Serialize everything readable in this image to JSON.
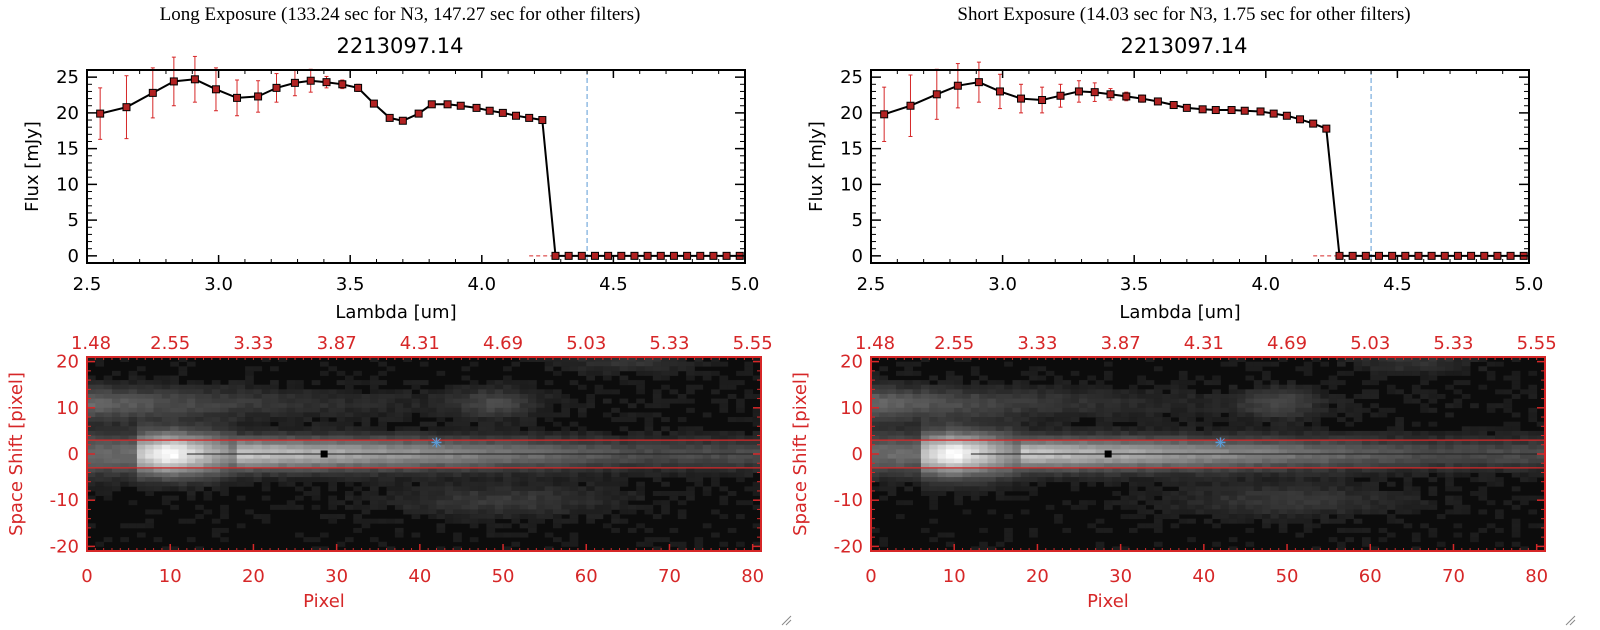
{
  "colors": {
    "red": "#d62728",
    "blue": "#5b9bd5",
    "black": "#000000",
    "marker": "#b22222"
  },
  "chart_data": [
    {
      "type": "line",
      "panel_title": "Long Exposure (133.24 sec for N3, 147.27 sec for other filters)",
      "title": "2213097.14",
      "xlabel": "Lambda [um]",
      "ylabel": "Flux [mJy]",
      "xlim": [
        2.5,
        5.0
      ],
      "ylim": [
        -1,
        26
      ],
      "xticks": [
        "2.5",
        "3.0",
        "3.5",
        "4.0",
        "4.5",
        "5.0"
      ],
      "yticks": [
        "0",
        "5",
        "10",
        "15",
        "20",
        "25"
      ],
      "vline_x": 4.4,
      "x": [
        2.55,
        2.65,
        2.75,
        2.83,
        2.91,
        2.99,
        3.07,
        3.15,
        3.22,
        3.29,
        3.35,
        3.41,
        3.47,
        3.53,
        3.59,
        3.65,
        3.7,
        3.76,
        3.81,
        3.87,
        3.92,
        3.98,
        4.03,
        4.08,
        4.13,
        4.18,
        4.23,
        4.28,
        4.33,
        4.38,
        4.43,
        4.48,
        4.53,
        4.58,
        4.63,
        4.68,
        4.73,
        4.78,
        4.83,
        4.88,
        4.93,
        4.98
      ],
      "y": [
        19.9,
        20.8,
        22.8,
        24.4,
        24.7,
        23.3,
        22.1,
        22.3,
        23.5,
        24.2,
        24.5,
        24.3,
        24.0,
        23.5,
        21.3,
        19.3,
        18.9,
        19.9,
        21.2,
        21.2,
        21.0,
        20.7,
        20.3,
        20.0,
        19.6,
        19.3,
        19.0,
        0,
        0,
        0,
        0,
        0,
        0,
        0,
        0,
        0,
        0,
        0,
        0,
        0,
        0,
        0
      ],
      "yerr": [
        3.6,
        4.4,
        3.5,
        3.4,
        3.2,
        3.0,
        2.5,
        2.2,
        2.0,
        1.8,
        1.6,
        0.8,
        0.6,
        0.5,
        0.4,
        0.3,
        0.3,
        0.3,
        0.3,
        0.2,
        0.2,
        0.2,
        0.2,
        0.2,
        0.2,
        0.2,
        0.2,
        0,
        0,
        0,
        0,
        0,
        0,
        0,
        0,
        0,
        0,
        0,
        0,
        0,
        0,
        0
      ],
      "image": {
        "xlabel": "Pixel",
        "ylabel": "Space Shift [pixel]",
        "xlim": [
          0,
          81
        ],
        "ylim": [
          -21,
          21
        ],
        "xticks": [
          "0",
          "10",
          "20",
          "30",
          "40",
          "50",
          "60",
          "70",
          "80"
        ],
        "yticks": [
          "-20",
          "-10",
          "0",
          "10",
          "20"
        ],
        "top_ticks": [
          "1.48",
          "2.55",
          "3.33",
          "3.87",
          "4.31",
          "4.69",
          "5.03",
          "5.33",
          "5.55"
        ],
        "aperture": [
          -3,
          3
        ],
        "source_pixel": [
          28.5,
          0
        ],
        "blue_marker": [
          42,
          2.5
        ]
      }
    },
    {
      "type": "line",
      "panel_title": "Short Exposure (14.03 sec for N3, 1.75 sec for other filters)",
      "title": "2213097.14",
      "xlabel": "Lambda [um]",
      "ylabel": "Flux [mJy]",
      "xlim": [
        2.5,
        5.0
      ],
      "ylim": [
        -1,
        26
      ],
      "xticks": [
        "2.5",
        "3.0",
        "3.5",
        "4.0",
        "4.5",
        "5.0"
      ],
      "yticks": [
        "0",
        "5",
        "10",
        "15",
        "20",
        "25"
      ],
      "vline_x": 4.4,
      "x": [
        2.55,
        2.65,
        2.75,
        2.83,
        2.91,
        2.99,
        3.07,
        3.15,
        3.22,
        3.29,
        3.35,
        3.41,
        3.47,
        3.53,
        3.59,
        3.65,
        3.7,
        3.76,
        3.81,
        3.87,
        3.92,
        3.98,
        4.03,
        4.08,
        4.13,
        4.18,
        4.23,
        4.28,
        4.33,
        4.38,
        4.43,
        4.48,
        4.53,
        4.58,
        4.63,
        4.68,
        4.73,
        4.78,
        4.83,
        4.88,
        4.93,
        4.98
      ],
      "y": [
        19.8,
        21.0,
        22.6,
        23.8,
        24.3,
        23.0,
        22.0,
        21.8,
        22.4,
        23.0,
        22.9,
        22.6,
        22.3,
        22.0,
        21.6,
        21.1,
        20.7,
        20.5,
        20.4,
        20.4,
        20.3,
        20.2,
        19.9,
        19.6,
        19.1,
        18.5,
        17.8,
        0,
        0,
        0,
        0,
        0,
        0,
        0,
        0,
        0,
        0,
        0,
        0,
        0,
        0,
        0
      ],
      "yerr": [
        3.8,
        4.3,
        3.5,
        3.1,
        2.8,
        2.4,
        2.0,
        1.8,
        1.6,
        1.5,
        1.3,
        0.8,
        0.6,
        0.5,
        0.4,
        0.3,
        0.3,
        0.3,
        0.3,
        0.2,
        0.2,
        0.2,
        0.2,
        0.2,
        0.2,
        0.2,
        0.2,
        0,
        0,
        0,
        0,
        0,
        0,
        0,
        0,
        0,
        0,
        0,
        0,
        0,
        0,
        0
      ],
      "image": {
        "xlabel": "Pixel",
        "ylabel": "Space Shift [pixel]",
        "xlim": [
          0,
          81
        ],
        "ylim": [
          -21,
          21
        ],
        "xticks": [
          "0",
          "10",
          "20",
          "30",
          "40",
          "50",
          "60",
          "70",
          "80"
        ],
        "yticks": [
          "-20",
          "-10",
          "0",
          "10",
          "20"
        ],
        "top_ticks": [
          "1.48",
          "2.55",
          "3.33",
          "3.87",
          "4.31",
          "4.69",
          "5.03",
          "5.33",
          "5.55"
        ],
        "aperture": [
          -3,
          3
        ],
        "source_pixel": [
          28.5,
          0
        ],
        "blue_marker": [
          42,
          2.5
        ]
      }
    }
  ]
}
